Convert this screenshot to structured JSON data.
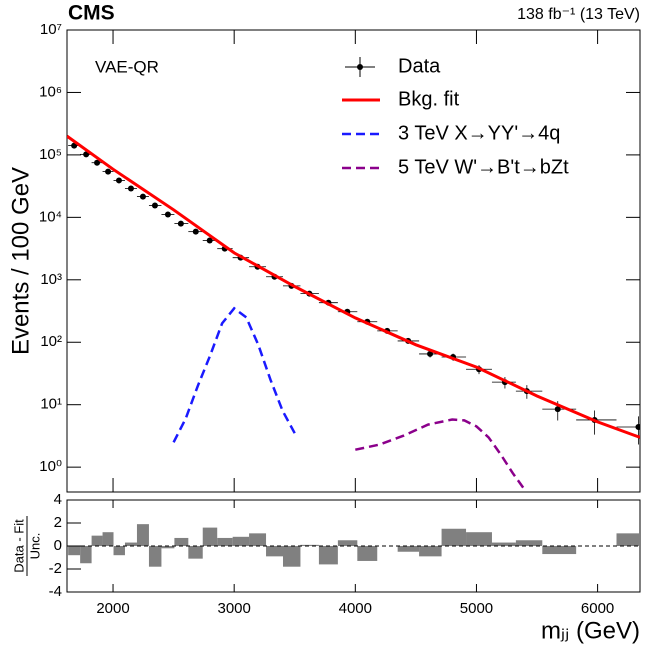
{
  "chart_data": [
    {
      "type": "line",
      "title": "CMS",
      "subtitle": "138 fb⁻¹ (13 TeV)",
      "annotation": "VAE-QR",
      "y_label": "Events / 100 GeV",
      "log_y": true,
      "legend": "upper right",
      "xlim": [
        1620,
        6350
      ],
      "ylim": [
        0.4,
        10000000
      ],
      "yticks": [
        {
          "value": 1,
          "label": "10⁰"
        },
        {
          "value": 10,
          "label": "10¹"
        },
        {
          "value": 100,
          "label": "10²"
        },
        {
          "value": 1000,
          "label": "10³"
        },
        {
          "value": 10000,
          "label": "10⁴"
        },
        {
          "value": 100000,
          "label": "10⁵"
        },
        {
          "value": 1000000,
          "label": "10⁶"
        },
        {
          "value": 10000000,
          "label": "10⁷"
        }
      ],
      "series": [
        {
          "name": "Data",
          "color": "#000000",
          "style": "points",
          "x": [
            1679,
            1778,
            1868,
            1959,
            2049,
            2148,
            2247,
            2346,
            2453,
            2560,
            2683,
            2798,
            2922,
            3053,
            3193,
            3333,
            3473,
            3621,
            3778,
            3934,
            4099,
            4263,
            4436,
            4617,
            4807,
            5021,
            5235,
            5416,
            5671,
            5975,
            6337
          ],
          "values": [
            141000,
            102000,
            75000,
            54000,
            39000,
            29000,
            21500,
            15500,
            11100,
            7950,
            5900,
            4250,
            3150,
            2260,
            1620,
            1120,
            800,
            600,
            430,
            308,
            213,
            152,
            105,
            65,
            58,
            37,
            23,
            16.5,
            8.5,
            5.7,
            4.4
          ]
        },
        {
          "name": "Bkg. fit",
          "color": "#ff0000",
          "style": "solid",
          "x": [
            1620,
            2000,
            2500,
            3000,
            3500,
            4000,
            4500,
            5000,
            5500,
            6000,
            6350
          ],
          "values": [
            200000,
            59000,
            13200,
            2700,
            780,
            245,
            91,
            40,
            13.8,
            5.3,
            3.0
          ]
        },
        {
          "name": "3 TeV X→YY'→4q",
          "color": "#1a1aff",
          "style": "dashed",
          "x": [
            2500,
            2600,
            2700,
            2800,
            2900,
            3000,
            3100,
            3200,
            3300,
            3400,
            3500
          ],
          "values": [
            2.5,
            6,
            20,
            60,
            200,
            350,
            250,
            90,
            25,
            8,
            3.5
          ]
        },
        {
          "name": "5 TeV W'→B't→bZt",
          "color": "#8b008b",
          "style": "dashed",
          "x": [
            4000,
            4200,
            4400,
            4600,
            4800,
            4900,
            5000,
            5100,
            5200,
            5300,
            5400
          ],
          "values": [
            1.9,
            2.3,
            3.2,
            4.8,
            5.8,
            5.6,
            4.5,
            3,
            1.6,
            0.8,
            0.43
          ]
        }
      ]
    },
    {
      "type": "bar",
      "x_label": "mⱼⱼ (GeV)",
      "y_label": [
        "Data - Fit",
        "Unc."
      ],
      "color": "#808080",
      "xlim": [
        1620,
        6350
      ],
      "ylim": [
        -4,
        4
      ],
      "yticks": [
        -4,
        -2,
        0,
        2,
        4
      ],
      "xticks": [
        2000,
        3000,
        4000,
        5000,
        6000
      ],
      "x": [
        1679,
        1778,
        1868,
        1959,
        2049,
        2148,
        2247,
        2346,
        2453,
        2560,
        2683,
        2798,
        2922,
        3053,
        3193,
        3333,
        3473,
        3621,
        3778,
        3934,
        4099,
        4263,
        4436,
        4617,
        4807,
        5021,
        5235,
        5416,
        5671,
        5975,
        6337
      ],
      "values": [
        -0.8,
        -1.5,
        0.9,
        1.2,
        -0.8,
        0.3,
        1.9,
        -1.8,
        -0.2,
        0.7,
        -1.1,
        1.6,
        0.7,
        0.8,
        1.1,
        -0.9,
        -1.8,
        0.1,
        -1.6,
        0.5,
        -1.3,
        0,
        -0.5,
        -0.9,
        1.5,
        1.2,
        0.3,
        0.5,
        -0.7,
        0,
        1.1
      ]
    }
  ]
}
